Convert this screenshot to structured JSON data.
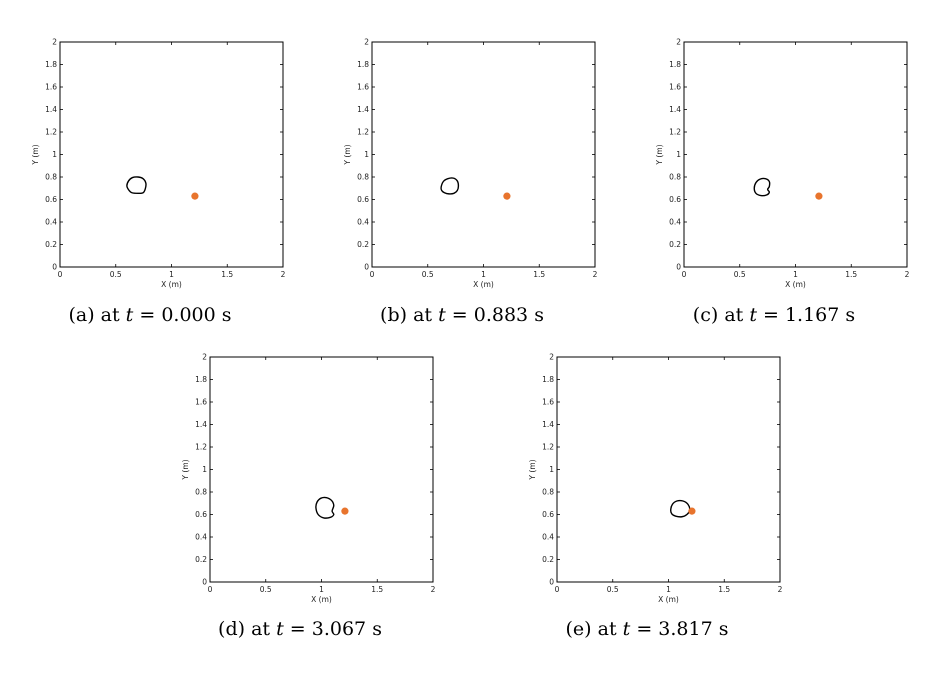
{
  "chart_data": [
    {
      "type": "scatter",
      "panel_label": "(a)",
      "caption_prefix": "at",
      "time_var": "t",
      "time_value": "0.000",
      "time_unit": "s",
      "xlabel": "X (m)",
      "ylabel": "Y (m)",
      "xlim": [
        0,
        2
      ],
      "ylim": [
        0,
        2
      ],
      "x_ticks": [
        "0",
        "0.5",
        "1",
        "1.5",
        "2"
      ],
      "y_ticks": [
        "0",
        "0.2",
        "0.4",
        "0.6",
        "0.8",
        "1",
        "1.2",
        "1.4",
        "1.6",
        "1.8",
        "2"
      ],
      "grid": false,
      "series": [
        {
          "kind": "outline",
          "color": "#000000",
          "points": [
            [
              0.6,
              0.72
            ],
            [
              0.615,
              0.765
            ],
            [
              0.65,
              0.795
            ],
            [
              0.7,
              0.8
            ],
            [
              0.745,
              0.785
            ],
            [
              0.77,
              0.745
            ],
            [
              0.765,
              0.695
            ],
            [
              0.745,
              0.66
            ],
            [
              0.7,
              0.655
            ],
            [
              0.645,
              0.66
            ],
            [
              0.62,
              0.68
            ]
          ]
        },
        {
          "kind": "point",
          "color": "#E8742D",
          "points": [
            [
              1.21,
              0.63
            ]
          ]
        }
      ]
    },
    {
      "type": "scatter",
      "panel_label": "(b)",
      "caption_prefix": "at",
      "time_var": "t",
      "time_value": "0.883",
      "time_unit": "s",
      "xlabel": "X (m)",
      "ylabel": "Y (m)",
      "xlim": [
        0,
        2
      ],
      "ylim": [
        0,
        2
      ],
      "x_ticks": [
        "0",
        "0.5",
        "1",
        "1.5",
        "2"
      ],
      "y_ticks": [
        "0",
        "0.2",
        "0.4",
        "0.6",
        "0.8",
        "1",
        "1.2",
        "1.4",
        "1.6",
        "1.8",
        "2"
      ],
      "grid": false,
      "series": [
        {
          "kind": "outline",
          "color": "#000000",
          "points": [
            [
              0.62,
              0.71
            ],
            [
              0.64,
              0.76
            ],
            [
              0.68,
              0.785
            ],
            [
              0.73,
              0.79
            ],
            [
              0.765,
              0.765
            ],
            [
              0.775,
              0.72
            ],
            [
              0.765,
              0.68
            ],
            [
              0.735,
              0.655
            ],
            [
              0.69,
              0.65
            ],
            [
              0.65,
              0.66
            ],
            [
              0.625,
              0.68
            ]
          ]
        },
        {
          "kind": "point",
          "color": "#E8742D",
          "points": [
            [
              1.21,
              0.63
            ]
          ]
        }
      ]
    },
    {
      "type": "scatter",
      "panel_label": "(c)",
      "caption_prefix": "at",
      "time_var": "t",
      "time_value": "1.167",
      "time_unit": "s",
      "xlabel": "X (m)",
      "ylabel": "Y (m)",
      "xlim": [
        0,
        2
      ],
      "ylim": [
        0,
        2
      ],
      "x_ticks": [
        "0",
        "0.5",
        "1",
        "1.5",
        "2"
      ],
      "y_ticks": [
        "0",
        "0.2",
        "0.4",
        "0.6",
        "0.8",
        "1",
        "1.2",
        "1.4",
        "1.6",
        "1.8",
        "2"
      ],
      "grid": false,
      "series": [
        {
          "kind": "outline",
          "color": "#000000",
          "points": [
            [
              0.63,
              0.7
            ],
            [
              0.645,
              0.75
            ],
            [
              0.68,
              0.78
            ],
            [
              0.73,
              0.785
            ],
            [
              0.765,
              0.76
            ],
            [
              0.765,
              0.715
            ],
            [
              0.75,
              0.69
            ],
            [
              0.765,
              0.665
            ],
            [
              0.74,
              0.64
            ],
            [
              0.69,
              0.635
            ],
            [
              0.645,
              0.655
            ]
          ]
        },
        {
          "kind": "point",
          "color": "#E8742D",
          "points": [
            [
              1.21,
              0.63
            ]
          ]
        }
      ]
    },
    {
      "type": "scatter",
      "panel_label": "(d)",
      "caption_prefix": "at",
      "time_var": "t",
      "time_value": "3.067",
      "time_unit": "s",
      "xlabel": "X (m)",
      "ylabel": "Y (m)",
      "xlim": [
        0,
        2
      ],
      "ylim": [
        0,
        2
      ],
      "x_ticks": [
        "0",
        "0.5",
        "1",
        "1.5",
        "2"
      ],
      "y_ticks": [
        "0",
        "0.2",
        "0.4",
        "0.6",
        "0.8",
        "1",
        "1.2",
        "1.4",
        "1.6",
        "1.8",
        "2"
      ],
      "grid": false,
      "series": [
        {
          "kind": "outline",
          "color": "#000000",
          "points": [
            [
              0.95,
              0.66
            ],
            [
              0.96,
              0.71
            ],
            [
              0.995,
              0.745
            ],
            [
              1.045,
              0.75
            ],
            [
              1.09,
              0.725
            ],
            [
              1.11,
              0.68
            ],
            [
              1.095,
              0.63
            ],
            [
              1.11,
              0.6
            ],
            [
              1.08,
              0.575
            ],
            [
              1.02,
              0.57
            ],
            [
              0.97,
              0.6
            ]
          ]
        },
        {
          "kind": "point",
          "color": "#E8742D",
          "points": [
            [
              1.21,
              0.63
            ]
          ]
        }
      ]
    },
    {
      "type": "scatter",
      "panel_label": "(e)",
      "caption_prefix": "at",
      "time_var": "t",
      "time_value": "3.817",
      "time_unit": "s",
      "xlabel": "X (m)",
      "ylabel": "Y (m)",
      "xlim": [
        0,
        2
      ],
      "ylim": [
        0,
        2
      ],
      "x_ticks": [
        "0",
        "0.5",
        "1",
        "1.5",
        "2"
      ],
      "y_ticks": [
        "0",
        "0.2",
        "0.4",
        "0.6",
        "0.8",
        "1",
        "1.2",
        "1.4",
        "1.6",
        "1.8",
        "2"
      ],
      "grid": false,
      "series": [
        {
          "kind": "outline",
          "color": "#000000",
          "points": [
            [
              1.02,
              0.64
            ],
            [
              1.035,
              0.69
            ],
            [
              1.075,
              0.72
            ],
            [
              1.13,
              0.72
            ],
            [
              1.175,
              0.69
            ],
            [
              1.19,
              0.64
            ],
            [
              1.165,
              0.6
            ],
            [
              1.12,
              0.58
            ],
            [
              1.065,
              0.585
            ],
            [
              1.03,
              0.605
            ]
          ]
        },
        {
          "kind": "point",
          "color": "#E8742D",
          "points": [
            [
              1.21,
              0.63
            ]
          ]
        }
      ]
    }
  ]
}
